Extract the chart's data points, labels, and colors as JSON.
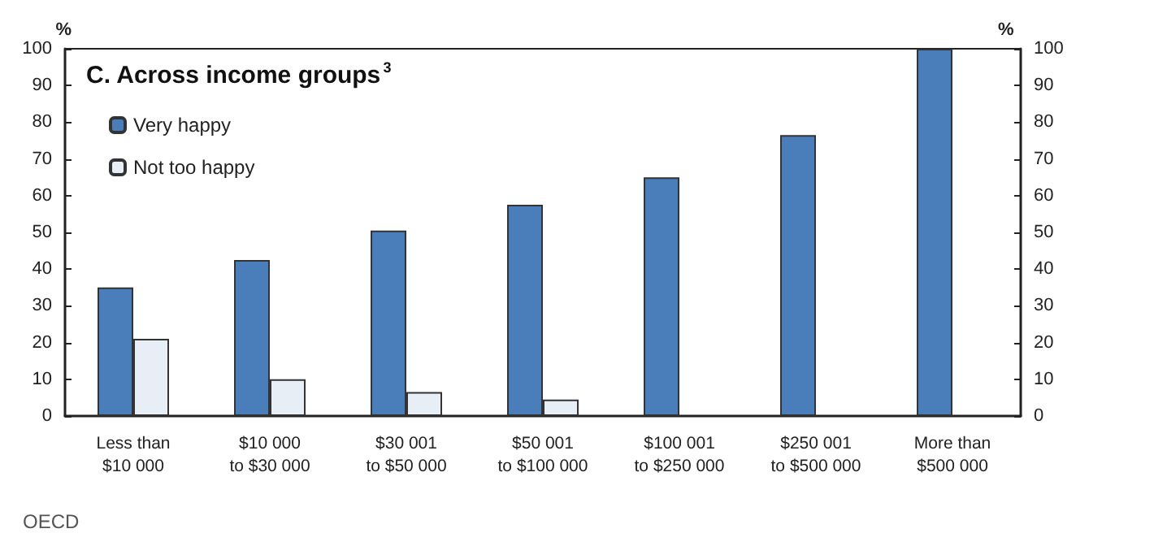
{
  "chart_data": {
    "type": "bar",
    "title": "C. Across income groups$^{3}$",
    "ylabel": "%",
    "y2label": "%",
    "categories": [
      "Less than\n$10 000",
      "$10 000\nto $30 000",
      "$30 001\nto $50 000",
      "$50 001\nto $100 000",
      "$100 001\nto $250 000",
      "$250 001\nto $500 000",
      "More than\n$500 000"
    ],
    "series": [
      {
        "name": "Very happy",
        "color": "#4a7ebb",
        "values": [
          35,
          42.5,
          50.5,
          57.5,
          65,
          76.5,
          100
        ]
      },
      {
        "name": "Not too happy",
        "color": "#e8eef6",
        "values": [
          21,
          10,
          6.5,
          4.5,
          null,
          null,
          null
        ]
      }
    ],
    "ylim": [
      0,
      100
    ],
    "yticks": [
      0,
      10,
      20,
      30,
      40,
      50,
      60,
      70,
      80,
      90,
      100
    ],
    "y2lim": [
      0,
      100
    ],
    "y2ticks": [
      0,
      10,
      20,
      30,
      40,
      50,
      60,
      70,
      80,
      90,
      100
    ],
    "grid": false,
    "legend": "top left",
    "annotations": [
      "OECD"
    ]
  }
}
